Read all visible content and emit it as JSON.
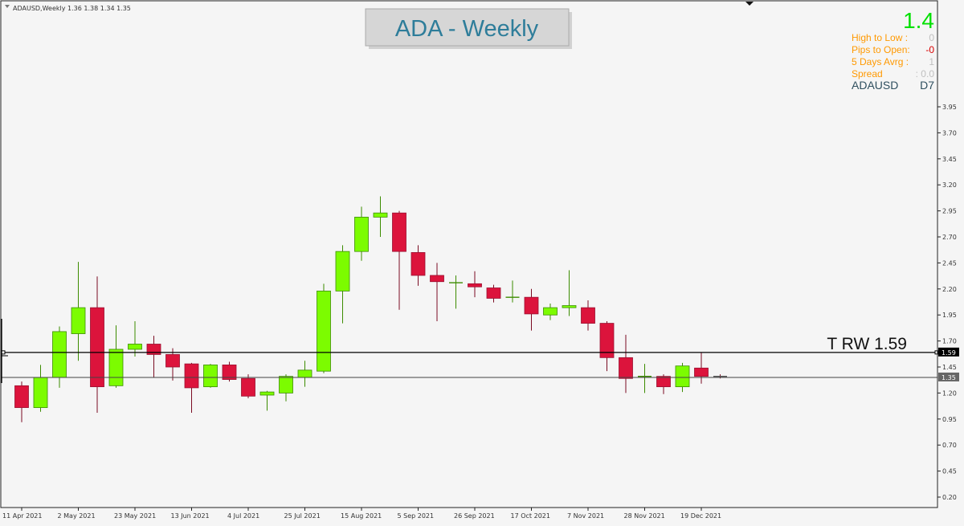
{
  "header": {
    "symbol_info": "ADAUSD,Weekly  1.36 1.38 1.34 1.35",
    "title_box": "ADA -  Weekly"
  },
  "info_panel": {
    "price": "1.4",
    "rows": [
      {
        "label": "High to Low  :",
        "value": "0"
      },
      {
        "label": "Pips to Open:",
        "value": "-0"
      },
      {
        "label": "5 Days Avrg :",
        "value": "1"
      },
      {
        "label": "Spread",
        "value": ": 0.0"
      }
    ],
    "symbol": "ADAUSD",
    "timeframe": "D7"
  },
  "lines": {
    "trw_label": "T RW 1.59",
    "trw_value": 1.59,
    "trw_tag": "1.59",
    "current_value": 1.35,
    "current_tag": "1.35"
  },
  "colors": {
    "bull": "#7cfc00",
    "bear": "#dc143c",
    "background": "#f5f5f5",
    "price_green": "#00e000",
    "info_orange": "#ff9900",
    "info_value_gray": "#c0c0c0",
    "title_text": "#2e7d9a"
  },
  "chart_data": {
    "type": "candlestick",
    "y_ticks": [
      "3.95",
      "3.70",
      "3.45",
      "3.20",
      "2.95",
      "2.70",
      "2.45",
      "2.20",
      "1.95",
      "1.70",
      "1.45",
      "1.20",
      "0.95",
      "0.70",
      "0.45",
      "0.20"
    ],
    "x_labels": [
      {
        "label": "11 Apr 2021",
        "index": 0
      },
      {
        "label": "2 May 2021",
        "index": 3
      },
      {
        "label": "23 May 2021",
        "index": 6
      },
      {
        "label": "13 Jun 2021",
        "index": 9
      },
      {
        "label": "4 Jul 2021",
        "index": 12
      },
      {
        "label": "25 Jul 2021",
        "index": 15
      },
      {
        "label": "15 Aug 2021",
        "index": 18
      },
      {
        "label": "5 Sep 2021",
        "index": 21
      },
      {
        "label": "26 Sep 2021",
        "index": 24
      },
      {
        "label": "17 Oct 2021",
        "index": 27
      },
      {
        "label": "7 Nov 2021",
        "index": 30
      },
      {
        "label": "28 Nov 2021",
        "index": 33
      },
      {
        "label": "19 Dec 2021",
        "index": 36
      }
    ],
    "candles": [
      {
        "o": 1.27,
        "h": 1.31,
        "l": 0.92,
        "c": 1.06
      },
      {
        "o": 1.06,
        "h": 1.47,
        "l": 1.02,
        "c": 1.35
      },
      {
        "o": 1.35,
        "h": 1.84,
        "l": 1.25,
        "c": 1.79
      },
      {
        "o": 1.77,
        "h": 2.46,
        "l": 1.51,
        "c": 2.02
      },
      {
        "o": 2.02,
        "h": 2.32,
        "l": 1.01,
        "c": 1.26
      },
      {
        "o": 1.27,
        "h": 1.85,
        "l": 1.25,
        "c": 1.62
      },
      {
        "o": 1.62,
        "h": 1.89,
        "l": 1.55,
        "c": 1.67
      },
      {
        "o": 1.67,
        "h": 1.75,
        "l": 1.35,
        "c": 1.57
      },
      {
        "o": 1.57,
        "h": 1.63,
        "l": 1.32,
        "c": 1.45
      },
      {
        "o": 1.48,
        "h": 1.49,
        "l": 1.01,
        "c": 1.25
      },
      {
        "o": 1.26,
        "h": 1.48,
        "l": 1.25,
        "c": 1.47
      },
      {
        "o": 1.47,
        "h": 1.5,
        "l": 1.31,
        "c": 1.33
      },
      {
        "o": 1.34,
        "h": 1.38,
        "l": 1.15,
        "c": 1.17
      },
      {
        "o": 1.18,
        "h": 1.22,
        "l": 1.03,
        "c": 1.21
      },
      {
        "o": 1.2,
        "h": 1.38,
        "l": 1.12,
        "c": 1.36
      },
      {
        "o": 1.35,
        "h": 1.51,
        "l": 1.26,
        "c": 1.42
      },
      {
        "o": 1.41,
        "h": 2.25,
        "l": 1.39,
        "c": 2.18
      },
      {
        "o": 2.18,
        "h": 2.62,
        "l": 1.87,
        "c": 2.56
      },
      {
        "o": 2.56,
        "h": 2.99,
        "l": 2.47,
        "c": 2.89
      },
      {
        "o": 2.89,
        "h": 3.09,
        "l": 2.7,
        "c": 2.93
      },
      {
        "o": 2.93,
        "h": 2.95,
        "l": 2.0,
        "c": 2.56
      },
      {
        "o": 2.55,
        "h": 2.62,
        "l": 2.23,
        "c": 2.33
      },
      {
        "o": 2.33,
        "h": 2.45,
        "l": 1.89,
        "c": 2.27
      },
      {
        "o": 2.26,
        "h": 2.33,
        "l": 2.01,
        "c": 2.26
      },
      {
        "o": 2.25,
        "h": 2.37,
        "l": 2.12,
        "c": 2.22
      },
      {
        "o": 2.21,
        "h": 2.24,
        "l": 2.07,
        "c": 2.11
      },
      {
        "o": 2.11,
        "h": 2.28,
        "l": 2.07,
        "c": 2.12
      },
      {
        "o": 2.12,
        "h": 2.2,
        "l": 1.8,
        "c": 1.96
      },
      {
        "o": 1.95,
        "h": 2.06,
        "l": 1.9,
        "c": 2.02
      },
      {
        "o": 2.02,
        "h": 2.38,
        "l": 1.94,
        "c": 2.04
      },
      {
        "o": 2.02,
        "h": 2.09,
        "l": 1.8,
        "c": 1.87
      },
      {
        "o": 1.87,
        "h": 1.89,
        "l": 1.41,
        "c": 1.54
      },
      {
        "o": 1.54,
        "h": 1.76,
        "l": 1.2,
        "c": 1.34
      },
      {
        "o": 1.35,
        "h": 1.48,
        "l": 1.2,
        "c": 1.36
      },
      {
        "o": 1.36,
        "h": 1.38,
        "l": 1.19,
        "c": 1.26
      },
      {
        "o": 1.26,
        "h": 1.49,
        "l": 1.21,
        "c": 1.46
      },
      {
        "o": 1.44,
        "h": 1.59,
        "l": 1.29,
        "c": 1.36
      },
      {
        "o": 1.36,
        "h": 1.38,
        "l": 1.34,
        "c": 1.35
      }
    ]
  }
}
